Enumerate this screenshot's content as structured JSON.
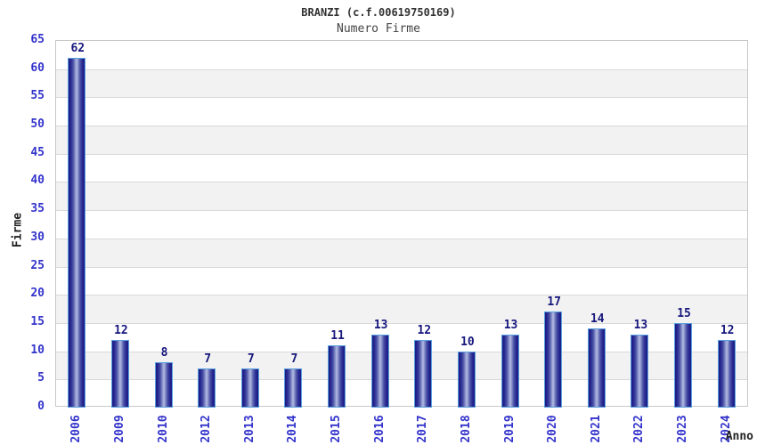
{
  "chart_data": {
    "type": "bar",
    "title": "BRANZI (c.f.00619750169)",
    "subtitle": "Numero Firme",
    "xlabel": "Anno",
    "ylabel": "Firme",
    "categories": [
      "2006",
      "2009",
      "2010",
      "2012",
      "2013",
      "2014",
      "2015",
      "2016",
      "2017",
      "2018",
      "2019",
      "2020",
      "2021",
      "2022",
      "2023",
      "2024"
    ],
    "values": [
      62,
      12,
      8,
      7,
      7,
      7,
      11,
      13,
      12,
      10,
      13,
      17,
      14,
      13,
      15,
      12
    ],
    "ylim": [
      0,
      65
    ],
    "yticks": [
      0,
      5,
      10,
      15,
      20,
      25,
      30,
      35,
      40,
      45,
      50,
      55,
      60,
      65
    ],
    "grid": "horizontal-bands-alternating",
    "legend": "none",
    "bar_value_labels": true,
    "colors": {
      "bar_edge_dark": "#1b1b85",
      "bar_center_light": "#b3bbe4",
      "bar_border": "#58a0dd",
      "axis_tick_label": "#3333cc",
      "bar_value_label": "#16167d",
      "axis_title": "#222222",
      "title": "#333333",
      "subtitle": "#444444",
      "band_gray": "#f2f2f2",
      "gridline": "#d9d9d9",
      "plot_border": "#c8c8c8",
      "background": "#ffffff"
    }
  }
}
